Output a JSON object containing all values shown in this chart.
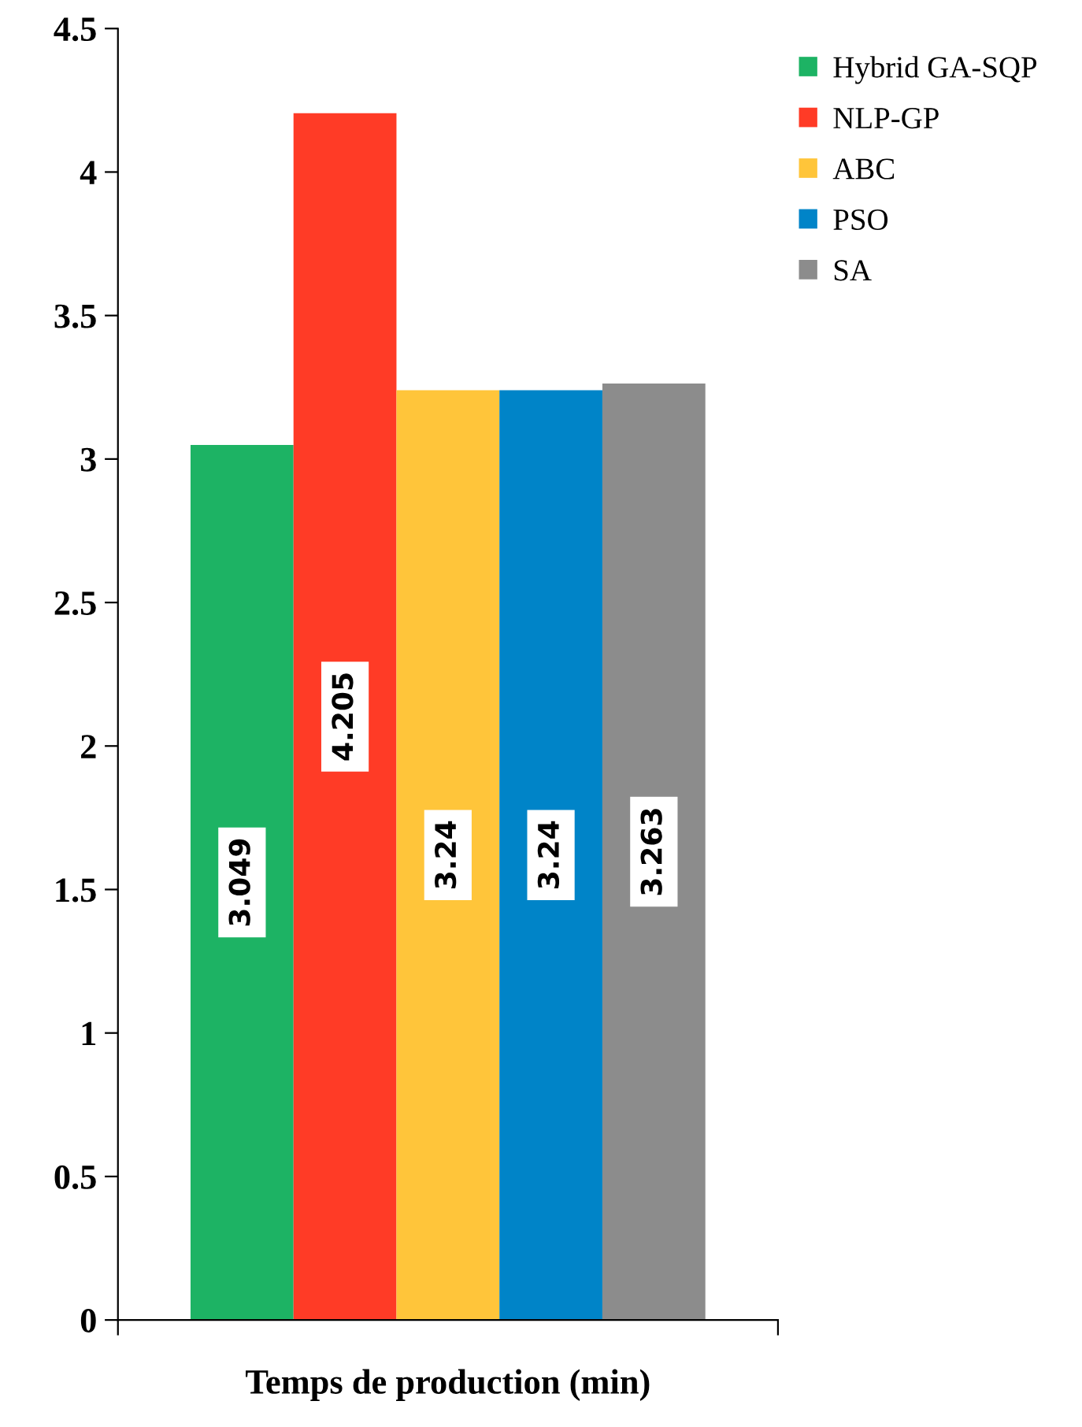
{
  "chart_data": {
    "type": "bar",
    "xlabel": "Temps de production (min)",
    "categories": [
      null
    ],
    "series": [
      {
        "name": "Hybrid GA-SQP",
        "color": "#1db364",
        "values": [
          3.049
        ]
      },
      {
        "name": "NLP-GP",
        "color": "#ff3b26",
        "values": [
          4.205
        ]
      },
      {
        "name": "ABC",
        "color": "#ffc53a",
        "values": [
          3.24
        ]
      },
      {
        "name": "PSO",
        "color": "#0084c8",
        "values": [
          3.24
        ]
      },
      {
        "name": "SA",
        "color": "#8c8c8c",
        "values": [
          3.263
        ]
      }
    ],
    "ylim": [
      0,
      4.5
    ],
    "yticks": [
      0,
      0.5,
      1,
      1.5,
      2,
      2.5,
      3,
      3.5,
      4,
      4.5
    ],
    "data_labels": true,
    "legend": "top right",
    "grid": false
  }
}
